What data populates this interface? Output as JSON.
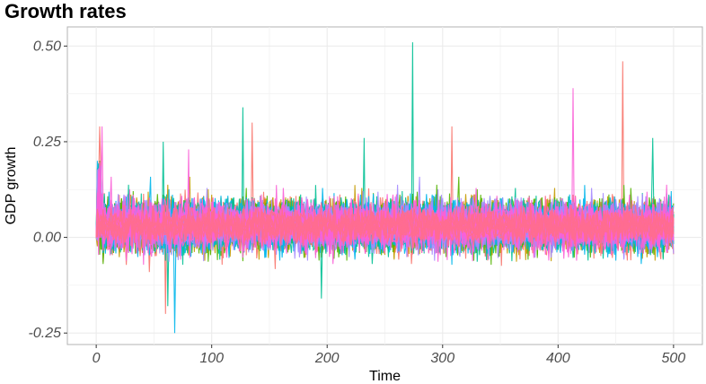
{
  "chart_data": {
    "type": "line",
    "title": "Growth rates",
    "xlabel": "Time",
    "ylabel": "GDP growth",
    "xlim": [
      -25,
      525
    ],
    "ylim": [
      -0.28,
      0.55
    ],
    "x_ticks": [
      0,
      100,
      200,
      300,
      400,
      500
    ],
    "x_tick_labels": [
      "0",
      "100",
      "200",
      "300",
      "400",
      "500"
    ],
    "y_ticks": [
      -0.25,
      0,
      0.25,
      0.5
    ],
    "y_tick_labels": [
      "-0.25",
      "0.00",
      "0.25",
      "0.50"
    ],
    "grid": true,
    "legend": "none",
    "series_colors": [
      "#F8766D",
      "#C49A00",
      "#53B400",
      "#00C094",
      "#00B6EB",
      "#A58AFF",
      "#FB61D7"
    ],
    "series_summary": {
      "n_points_per_series": 500,
      "start_value": 0.0,
      "typical_band": [
        -0.05,
        0.12
      ],
      "center": 0.03
    },
    "notable_spikes": [
      {
        "x": 3,
        "y": 0.29,
        "color": "#F8766D"
      },
      {
        "x": 5,
        "y": 0.29,
        "color": "#FB61D7"
      },
      {
        "x": 58,
        "y": 0.25,
        "color": "#00C094"
      },
      {
        "x": 80,
        "y": 0.23,
        "color": "#FB61D7"
      },
      {
        "x": 127,
        "y": 0.34,
        "color": "#00C094"
      },
      {
        "x": 135,
        "y": 0.3,
        "color": "#F8766D"
      },
      {
        "x": 232,
        "y": 0.26,
        "color": "#00C094"
      },
      {
        "x": 274,
        "y": 0.51,
        "color": "#00C094"
      },
      {
        "x": 308,
        "y": 0.29,
        "color": "#F8766D"
      },
      {
        "x": 413,
        "y": 0.39,
        "color": "#FB61D7"
      },
      {
        "x": 456,
        "y": 0.46,
        "color": "#F8766D"
      },
      {
        "x": 482,
        "y": 0.26,
        "color": "#00C094"
      },
      {
        "x": 68,
        "y": -0.25,
        "color": "#00B6EB"
      },
      {
        "x": 60,
        "y": -0.2,
        "color": "#F8766D"
      },
      {
        "x": 62,
        "y": -0.18,
        "color": "#00C094"
      },
      {
        "x": 195,
        "y": -0.16,
        "color": "#00C094"
      }
    ]
  }
}
